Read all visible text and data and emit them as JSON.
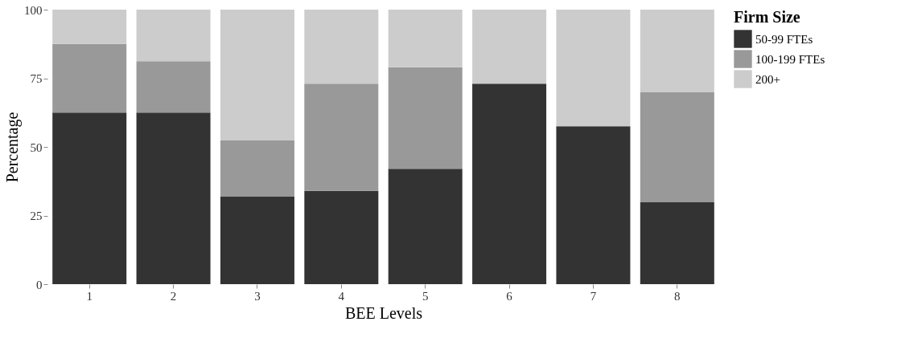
{
  "chart_data": {
    "type": "bar",
    "stacked": true,
    "xlabel": "BEE Levels",
    "ylabel": "Percentage",
    "legend_title": "Firm Size",
    "legend": "right",
    "grid": false,
    "categories": [
      "1",
      "2",
      "3",
      "4",
      "5",
      "6",
      "7",
      "8"
    ],
    "ylim": [
      0,
      100
    ],
    "yticks": [
      0,
      25,
      50,
      75,
      100
    ],
    "series": [
      {
        "name": "50-99 FTEs",
        "color": "#333333",
        "values": [
          62.5,
          62.5,
          32,
          34,
          42,
          73,
          57.5,
          30
        ]
      },
      {
        "name": "100-199 FTEs",
        "color": "#999999",
        "values": [
          25,
          18.75,
          20.5,
          39,
          37,
          null,
          null,
          40
        ]
      },
      {
        "name": "200+",
        "color": "#cccccc",
        "values": [
          12.5,
          18.75,
          47.5,
          27,
          21,
          27,
          42.5,
          30
        ]
      }
    ]
  }
}
